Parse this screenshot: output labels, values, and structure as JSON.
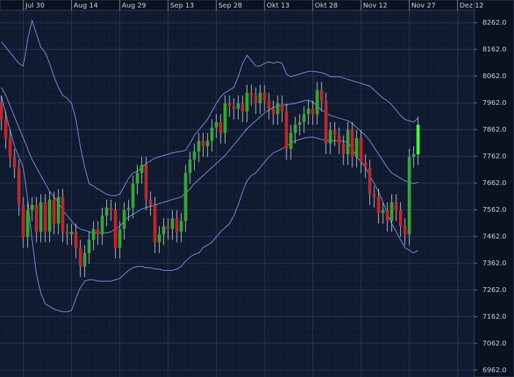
{
  "chart_data": {
    "type": "candlestick",
    "categories": [
      null,
      null,
      null,
      null,
      null,
      "Jul 30",
      null,
      null,
      null,
      null,
      null,
      null,
      null,
      null,
      null,
      null,
      "Aug 14",
      null,
      null,
      null,
      null,
      null,
      null,
      null,
      null,
      null,
      null,
      "Aug 29",
      null,
      null,
      null,
      null,
      null,
      null,
      null,
      null,
      null,
      null,
      "Sep 13",
      null,
      null,
      null,
      null,
      null,
      null,
      null,
      null,
      null,
      null,
      "Sep 28",
      null,
      null,
      null,
      null,
      null,
      null,
      null,
      null,
      null,
      null,
      "Okt 13",
      null,
      null,
      null,
      null,
      null,
      null,
      null,
      null,
      null,
      null,
      "Okt 28",
      null,
      null,
      null,
      null,
      null,
      null,
      null,
      null,
      null,
      null,
      "Nov 12",
      null,
      null,
      null,
      null,
      null,
      null,
      null,
      null,
      null,
      null,
      "Nov 27",
      null,
      null,
      null,
      null,
      null,
      null,
      null,
      null,
      null,
      null,
      "Dez 12",
      null
    ],
    "open": [
      7960,
      7900,
      7830,
      7760,
      7720,
      7580,
      7460,
      7560,
      7580,
      7480,
      7590,
      7480,
      7600,
      7510,
      7610,
      7480,
      7470,
      7480,
      7420,
      7350,
      7400,
      7450,
      7490,
      7470,
      7540,
      7570,
      7560,
      7420,
      7490,
      7560,
      7570,
      7660,
      7700,
      7730,
      7600,
      7580,
      7440,
      7470,
      7500,
      7490,
      7530,
      7480,
      7520,
      7700,
      7750,
      7780,
      7820,
      7800,
      7820,
      7870,
      7890,
      7850,
      7960,
      7950,
      7940,
      7960,
      7930,
      8000,
      7990,
      7960,
      8000,
      7970,
      7940,
      7920,
      7960,
      7930,
      7790,
      7850,
      7880,
      7890,
      7920,
      7940,
      7920,
      8010,
      7970,
      7810,
      7860,
      7840,
      7810,
      7770,
      7860,
      7760,
      7830,
      7740,
      7720,
      7620,
      7610,
      7550,
      7560,
      7520,
      7590,
      7560,
      7500,
      7470,
      7760,
      7770,
      null,
      null,
      null,
      null,
      null,
      null,
      null,
      null,
      null,
      null
    ],
    "high": [
      7990,
      7930,
      7860,
      7790,
      7750,
      7610,
      7590,
      7610,
      7610,
      7620,
      7620,
      7630,
      7630,
      7640,
      7640,
      7510,
      7510,
      7510,
      7450,
      7430,
      7480,
      7520,
      7520,
      7570,
      7600,
      7600,
      7590,
      7520,
      7590,
      7600,
      7690,
      7730,
      7760,
      7760,
      7630,
      7610,
      7500,
      7530,
      7530,
      7560,
      7560,
      7550,
      7730,
      7780,
      7810,
      7850,
      7850,
      7850,
      7900,
      7920,
      7920,
      7990,
      7990,
      7980,
      7990,
      7990,
      8030,
      8030,
      8020,
      8030,
      8030,
      8000,
      7970,
      7990,
      7990,
      7960,
      7880,
      7910,
      7920,
      7950,
      7970,
      7970,
      8040,
      8040,
      8000,
      7890,
      7890,
      7870,
      7840,
      7890,
      7890,
      7860,
      7860,
      7770,
      7750,
      7650,
      7640,
      7590,
      7590,
      7620,
      7620,
      7590,
      7530,
      7790,
      7800,
      7910,
      null,
      null,
      null,
      null,
      null,
      null,
      null,
      null,
      null,
      null
    ],
    "low": [
      7860,
      7790,
      7720,
      7680,
      7540,
      7420,
      7420,
      7520,
      7440,
      7440,
      7440,
      7440,
      7470,
      7470,
      7440,
      7430,
      7430,
      7380,
      7310,
      7310,
      7360,
      7410,
      7430,
      7430,
      7500,
      7520,
      7380,
      7380,
      7450,
      7520,
      7530,
      7620,
      7660,
      7560,
      7540,
      7400,
      7400,
      7430,
      7450,
      7450,
      7440,
      7440,
      7480,
      7660,
      7710,
      7740,
      7760,
      7760,
      7780,
      7830,
      7810,
      7810,
      7910,
      7900,
      7900,
      7890,
      7890,
      7950,
      7920,
      7920,
      7930,
      7900,
      7880,
      7880,
      7890,
      7750,
      7750,
      7810,
      7840,
      7850,
      7880,
      7880,
      7880,
      7930,
      7770,
      7770,
      7800,
      7770,
      7730,
      7730,
      7720,
      7720,
      7700,
      7680,
      7580,
      7570,
      7510,
      7510,
      7480,
      7480,
      7520,
      7460,
      7430,
      7430,
      7720,
      7730,
      null,
      null,
      null,
      null,
      null,
      null,
      null,
      null,
      null,
      null
    ],
    "close": [
      7900,
      7830,
      7760,
      7720,
      7580,
      7460,
      7560,
      7580,
      7480,
      7590,
      7480,
      7600,
      7510,
      7610,
      7480,
      7470,
      7480,
      7420,
      7350,
      7400,
      7450,
      7490,
      7470,
      7540,
      7570,
      7560,
      7420,
      7490,
      7560,
      7570,
      7660,
      7700,
      7730,
      7600,
      7580,
      7440,
      7470,
      7500,
      7490,
      7530,
      7480,
      7520,
      7700,
      7750,
      7780,
      7820,
      7800,
      7820,
      7870,
      7890,
      7850,
      7960,
      7950,
      7940,
      7960,
      7930,
      8000,
      7990,
      7960,
      8000,
      7970,
      7940,
      7920,
      7960,
      7930,
      7790,
      7850,
      7880,
      7890,
      7920,
      7940,
      7920,
      8010,
      7970,
      7810,
      7860,
      7840,
      7810,
      7770,
      7860,
      7760,
      7830,
      7740,
      7720,
      7620,
      7610,
      7550,
      7560,
      7520,
      7590,
      7560,
      7500,
      7470,
      7760,
      7770,
      7880,
      null,
      null,
      null,
      null,
      null,
      null,
      null,
      null,
      null,
      null
    ],
    "up_color": "#2faa2f",
    "down_color": "#c0262b",
    "last_color": "#3dff3d",
    "wick_color": "#c8ccd4",
    "overlays": [
      {
        "color": "#7f9ff0",
        "values": [
          8190,
          8170,
          8150,
          8130,
          8110,
          8100,
          8200,
          8270,
          8220,
          8170,
          8150,
          8110,
          8060,
          8020,
          7990,
          7980,
          7960,
          7900,
          7800,
          7720,
          7660,
          7650,
          7640,
          7630,
          7620,
          7615,
          7615,
          7620,
          7650,
          7680,
          7700,
          7705,
          7720,
          7735,
          7745,
          7755,
          7760,
          7765,
          7770,
          7775,
          7778,
          7780,
          7785,
          7810,
          7840,
          7860,
          7880,
          7900,
          7930,
          7960,
          7985,
          8000,
          8010,
          8020,
          8060,
          8110,
          8140,
          8120,
          8100,
          8100,
          8110,
          8115,
          8110,
          8115,
          8110,
          8070,
          8060,
          8065,
          8070,
          8075,
          8080,
          8080,
          8078,
          8075,
          8070,
          8060,
          8060,
          8060,
          8055,
          8050,
          8045,
          8040,
          8035,
          8030,
          8025,
          8010,
          7995,
          7980,
          7970,
          7955,
          7935,
          7915,
          7900,
          7895,
          7890,
          7905,
          null,
          null,
          null,
          null,
          null,
          null,
          null,
          null,
          null,
          null
        ]
      },
      {
        "color": "#7f9ff0",
        "values": [
          8020,
          7990,
          7950,
          7910,
          7870,
          7830,
          7790,
          7750,
          7720,
          7690,
          7660,
          7630,
          7610,
          7590,
          7560,
          7540,
          7520,
          7500,
          7490,
          7485,
          7480,
          7475,
          7475,
          7475,
          7475,
          7480,
          7490,
          7500,
          7520,
          7535,
          7545,
          7555,
          7565,
          7570,
          7575,
          7580,
          7585,
          7590,
          7595,
          7600,
          7605,
          7610,
          7625,
          7640,
          7660,
          7675,
          7690,
          7705,
          7720,
          7735,
          7750,
          7765,
          7785,
          7805,
          7825,
          7845,
          7865,
          7880,
          7895,
          7910,
          7925,
          7935,
          7945,
          7950,
          7952,
          7955,
          7958,
          7960,
          7965,
          7970,
          7972,
          7965,
          7950,
          7935,
          7925,
          7915,
          7910,
          7905,
          7900,
          7895,
          7885,
          7870,
          7855,
          7840,
          7820,
          7795,
          7770,
          7745,
          7720,
          7700,
          7690,
          7680,
          7670,
          7665,
          7660,
          7665,
          null,
          null,
          null,
          null,
          null,
          null,
          null,
          null,
          null,
          null
        ]
      },
      {
        "color": "#7f9ff0",
        "values": [
          7990,
          7920,
          7860,
          7800,
          7760,
          7720,
          7600,
          7450,
          7320,
          7250,
          7210,
          7200,
          7190,
          7185,
          7180,
          7180,
          7185,
          7230,
          7270,
          7295,
          7300,
          7300,
          7295,
          7295,
          7295,
          7295,
          7300,
          7305,
          7320,
          7335,
          7345,
          7350,
          7350,
          7345,
          7345,
          7340,
          7340,
          7335,
          7335,
          7335,
          7340,
          7350,
          7370,
          7385,
          7395,
          7400,
          7420,
          7430,
          7440,
          7460,
          7480,
          7495,
          7510,
          7540,
          7580,
          7630,
          7670,
          7690,
          7700,
          7720,
          7740,
          7760,
          7775,
          7782,
          7790,
          7800,
          7810,
          7820,
          7825,
          7830,
          7833,
          7834,
          7830,
          7825,
          7822,
          7820,
          7820,
          7820,
          7818,
          7815,
          7790,
          7760,
          7740,
          7720,
          7690,
          7660,
          7630,
          7590,
          7550,
          7510,
          7480,
          7450,
          7420,
          7410,
          7400,
          7410,
          null,
          null,
          null,
          null,
          null,
          null,
          null,
          null,
          null,
          null
        ]
      }
    ],
    "ylim": [
      6936,
      8347
    ],
    "yticks": [
      {
        "value": 6962,
        "label": "6962.0"
      },
      {
        "value": 7062,
        "label": "7062.0"
      },
      {
        "value": 7162,
        "label": "7162.0"
      },
      {
        "value": 7262,
        "label": "7262.0"
      },
      {
        "value": 7362,
        "label": "7362.0"
      },
      {
        "value": 7462,
        "label": "7462.0"
      },
      {
        "value": 7562,
        "label": "7562.0"
      },
      {
        "value": 7662,
        "label": "7662.0"
      },
      {
        "value": 7762,
        "label": "7762.0"
      },
      {
        "value": 7862,
        "label": "7862.0"
      },
      {
        "value": 7962,
        "label": "7962.0"
      },
      {
        "value": 8062,
        "label": "8062.0"
      },
      {
        "value": 8162,
        "label": "8162.0"
      },
      {
        "value": 8262,
        "label": "8262.0"
      }
    ],
    "grid": true
  }
}
